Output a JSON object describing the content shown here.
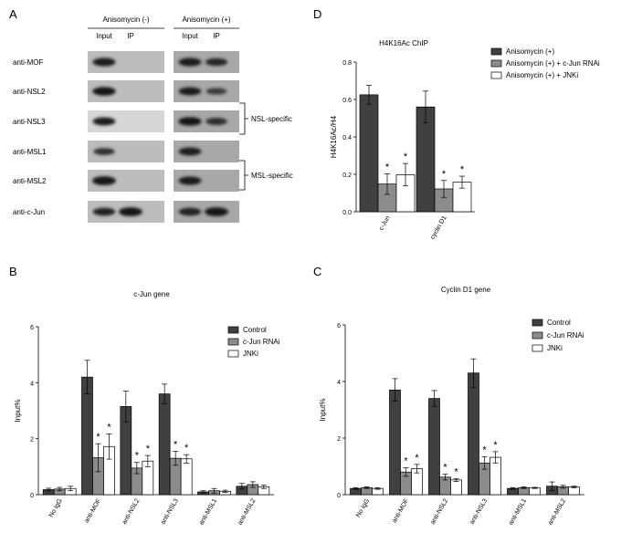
{
  "panel_a": {
    "letter": "A",
    "conditions": [
      "Anisomycin (-)",
      "Anisomycin (+)"
    ],
    "lane_labels": [
      "Input",
      "IP"
    ],
    "antibodies": [
      "anti-MOF",
      "anti-NSL2",
      "anti-NSL3",
      "anti-MSL1",
      "anti-MSL2",
      "anti-c-Jun"
    ],
    "groups": [
      {
        "label": "NSL-specific",
        "members": [
          "anti-NSL2",
          "anti-NSL3"
        ]
      },
      {
        "label": "MSL-specific",
        "members": [
          "anti-MSL1",
          "anti-MSL2"
        ]
      }
    ],
    "band_intensity": {
      "minus": [
        [
          0.85,
          0.0
        ],
        [
          0.9,
          0.0
        ],
        [
          0.8,
          0.0
        ],
        [
          0.55,
          0.0
        ],
        [
          0.95,
          0.0
        ],
        [
          0.75,
          0.95
        ]
      ],
      "plus": [
        [
          0.85,
          0.7
        ],
        [
          0.8,
          0.45
        ],
        [
          0.9,
          0.6
        ],
        [
          0.8,
          0.0
        ],
        [
          0.85,
          0.0
        ],
        [
          0.75,
          0.95
        ]
      ]
    }
  },
  "chart_data": [
    {
      "panel": "B",
      "type": "bar",
      "title": "c-Jun gene",
      "ylabel": "Input%",
      "xlabel": "",
      "ylim": [
        0,
        6
      ],
      "yticks": [
        0,
        2,
        4,
        6
      ],
      "categories": [
        "No IgG",
        "anti-MOF",
        "anti-NSL2",
        "anti-NSL3",
        "anti-MSL1",
        "anti-MSL2"
      ],
      "series": [
        {
          "name": "Control",
          "values": [
            0.18,
            4.2,
            3.15,
            3.6,
            0.1,
            0.3
          ],
          "errors": [
            0.05,
            0.6,
            0.55,
            0.35,
            0.04,
            0.1
          ]
        },
        {
          "name": "c-Jun RNAi",
          "values": [
            0.2,
            1.32,
            0.95,
            1.3,
            0.14,
            0.36
          ],
          "errors": [
            0.06,
            0.5,
            0.2,
            0.25,
            0.08,
            0.1
          ]
        },
        {
          "name": "JNKi",
          "values": [
            0.22,
            1.72,
            1.2,
            1.28,
            0.12,
            0.28
          ],
          "errors": [
            0.08,
            0.45,
            0.2,
            0.15,
            0.04,
            0.06
          ]
        }
      ],
      "significance_marks": [
        {
          "category": "anti-MOF",
          "series": "c-Jun RNAi",
          "label": "*"
        },
        {
          "category": "anti-MOF",
          "series": "JNKi",
          "label": "*"
        },
        {
          "category": "anti-NSL2",
          "series": "c-Jun RNAi",
          "label": "*"
        },
        {
          "category": "anti-NSL2",
          "series": "JNKi",
          "label": "*"
        },
        {
          "category": "anti-NSL3",
          "series": "c-Jun RNAi",
          "label": "*"
        },
        {
          "category": "anti-NSL3",
          "series": "JNKi",
          "label": "*"
        }
      ],
      "legend_position": "top-right",
      "colors": [
        "#404040",
        "#8c8c8c",
        "#ffffff"
      ]
    },
    {
      "panel": "C",
      "type": "bar",
      "title": "Cyclin D1 gene",
      "ylabel": "Input%",
      "xlabel": "",
      "ylim": [
        0,
        6
      ],
      "yticks": [
        0,
        2,
        4,
        6
      ],
      "categories": [
        "No IgG",
        "anti-MOF",
        "anti-NSL2",
        "anti-NSL3",
        "anti-MSL1",
        "anti-MSL2"
      ],
      "series": [
        {
          "name": "Control",
          "values": [
            0.22,
            3.7,
            3.4,
            4.3,
            0.22,
            0.3
          ],
          "errors": [
            0.03,
            0.4,
            0.28,
            0.5,
            0.03,
            0.15
          ]
        },
        {
          "name": "c-Jun RNAi",
          "values": [
            0.25,
            0.8,
            0.62,
            1.12,
            0.25,
            0.28
          ],
          "errors": [
            0.03,
            0.15,
            0.1,
            0.22,
            0.03,
            0.05
          ]
        },
        {
          "name": "JNKi",
          "values": [
            0.22,
            0.92,
            0.52,
            1.32,
            0.24,
            0.27
          ],
          "errors": [
            0.03,
            0.15,
            0.05,
            0.2,
            0.02,
            0.03
          ]
        }
      ],
      "significance_marks": [
        {
          "category": "anti-MOF",
          "series": "c-Jun RNAi",
          "label": "*"
        },
        {
          "category": "anti-MOF",
          "series": "JNKi",
          "label": "*"
        },
        {
          "category": "anti-NSL2",
          "series": "c-Jun RNAi",
          "label": "*"
        },
        {
          "category": "anti-NSL2",
          "series": "JNKi",
          "label": "*"
        },
        {
          "category": "anti-NSL3",
          "series": "c-Jun RNAi",
          "label": "*"
        },
        {
          "category": "anti-NSL3",
          "series": "JNKi",
          "label": "*"
        }
      ],
      "legend_position": "top-right",
      "colors": [
        "#404040",
        "#8c8c8c",
        "#ffffff"
      ]
    },
    {
      "panel": "D",
      "type": "bar",
      "title": "H4K16Ac ChIP",
      "ylabel": "H4K16Ac/H4",
      "xlabel": "",
      "ylim": [
        0,
        0.8
      ],
      "yticks": [
        0.0,
        0.2,
        0.4,
        0.6,
        0.8
      ],
      "ytick_labels": [
        "0.0",
        "0.2",
        "0.4",
        "0.6",
        "0.8"
      ],
      "categories": [
        "c-Jun",
        "cyclin D1"
      ],
      "series": [
        {
          "name": "Anisomycin (+)",
          "values": [
            0.625,
            0.56
          ],
          "errors": [
            0.05,
            0.085
          ]
        },
        {
          "name": "Anisomycin (+) + c-Jun RNAi",
          "values": [
            0.148,
            0.122
          ],
          "errors": [
            0.055,
            0.045
          ]
        },
        {
          "name": "Anisomycin (+) + JNKi",
          "values": [
            0.198,
            0.158
          ],
          "errors": [
            0.06,
            0.032
          ]
        }
      ],
      "significance_marks": [
        {
          "category": "c-Jun",
          "series": "Anisomycin (+) + c-Jun RNAi",
          "label": "*"
        },
        {
          "category": "c-Jun",
          "series": "Anisomycin (+) + JNKi",
          "label": "*"
        },
        {
          "category": "cyclin D1",
          "series": "Anisomycin (+) + c-Jun RNAi",
          "label": "*"
        },
        {
          "category": "cyclin D1",
          "series": "Anisomycin (+) + JNKi",
          "label": "*"
        }
      ],
      "legend_position": "top-right",
      "colors": [
        "#404040",
        "#8c8c8c",
        "#ffffff"
      ]
    }
  ]
}
